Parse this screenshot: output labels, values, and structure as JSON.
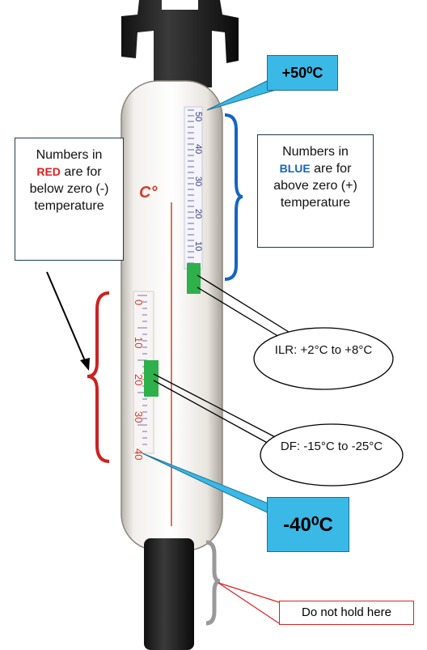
{
  "callouts": {
    "top_limit": "+50⁰C",
    "bottom_limit": "-40⁰C"
  },
  "red_note": {
    "lead": "Numbers in",
    "highlight": "RED",
    "rest": "are for below zero (-) temperature"
  },
  "blue_note": {
    "lead": "Numbers in",
    "highlight": "BLUE",
    "rest": "are for above zero (+) temperature"
  },
  "ranges": {
    "ilr": "ILR: +2°C to +8°C",
    "df": "DF: -15°C to -25°C"
  },
  "grip_note": "Do not hold here",
  "thermometer": {
    "unit_label": "C°",
    "red_scale": [
      "0",
      "10",
      "20",
      "30",
      "40"
    ],
    "blue_scale": [
      "50",
      "40",
      "30",
      "20",
      "10"
    ]
  }
}
